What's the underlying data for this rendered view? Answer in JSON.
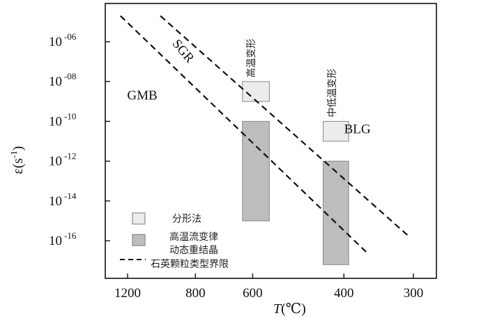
{
  "chart_data": {
    "type": "bar",
    "xlabel_var": "T",
    "xlabel_unit": "(℃)",
    "ylabel_prefix": "ε",
    "ylabel_unit": "(s",
    "ylabel_unit_sup": "-1",
    "ylabel_unit_close": ")",
    "x_ticks": [
      {
        "value": 1200,
        "label": "1200"
      },
      {
        "value": 800,
        "label": "800"
      },
      {
        "value": 600,
        "label": "600"
      },
      {
        "value": 400,
        "label": "400"
      },
      {
        "value": 300,
        "label": "300"
      }
    ],
    "y_ticks": [
      {
        "exp": -6,
        "base": "10",
        "sup": "-06"
      },
      {
        "exp": -8,
        "base": "10",
        "sup": "-08"
      },
      {
        "exp": -10,
        "base": "10",
        "sup": "-10"
      },
      {
        "exp": -12,
        "base": "10",
        "sup": "-12"
      },
      {
        "exp": -14,
        "base": "10",
        "sup": "-14"
      },
      {
        "exp": -16,
        "base": "10",
        "sup": "-16"
      }
    ],
    "y_log_range": [
      -18.1,
      -4.3
    ],
    "boundaries": [
      {
        "name": "GMB–SGR",
        "points": [
          [
            1260,
            -4.7
          ],
          [
            360,
            -16.7
          ]
        ]
      },
      {
        "name": "SGR–BLG",
        "points": [
          [
            975,
            -4.7
          ],
          [
            305,
            -15.8
          ]
        ]
      }
    ],
    "bars": [
      {
        "category": "高温变形",
        "kind": "fractal",
        "x_left": 630,
        "x_right": 555,
        "y_low_exp": -9.0,
        "y_high_exp": -8.0,
        "color": "#ececec"
      },
      {
        "category": "高温变形",
        "kind": "flow",
        "x_left": 630,
        "x_right": 555,
        "y_low_exp": -15.0,
        "y_high_exp": -10.0,
        "color": "#bdbdbd"
      },
      {
        "category": "中低温变形",
        "kind": "fractal",
        "x_left": 437,
        "x_right": 392,
        "y_low_exp": -11.0,
        "y_high_exp": -10.0,
        "color": "#ececec"
      },
      {
        "category": "中低温变形",
        "kind": "flow",
        "x_left": 437,
        "x_right": 392,
        "y_low_exp": -17.2,
        "y_high_exp": -12.0,
        "color": "#bdbdbd"
      }
    ],
    "region_labels": [
      {
        "text": "GMB",
        "x": 1090,
        "y_exp": -8.9
      },
      {
        "text": "SGR",
        "x": 870,
        "y_exp": -6.6,
        "rotate": 50
      },
      {
        "text": "BLG",
        "x": 378,
        "y_exp": -10.6
      }
    ],
    "category_labels": [
      {
        "text": "高温变形",
        "x": 595,
        "y_exp": -7.8
      },
      {
        "text": "中低温变形",
        "x": 415,
        "y_exp": -9.8
      }
    ],
    "legend": [
      {
        "label": "分形法",
        "swatch": "#ececec",
        "type": "box"
      },
      {
        "label": "高温流变律",
        "label2": "动态重结晶",
        "swatch": "#bdbdbd",
        "type": "box"
      },
      {
        "label": "石英颗粒类型界限",
        "type": "dash"
      }
    ]
  }
}
